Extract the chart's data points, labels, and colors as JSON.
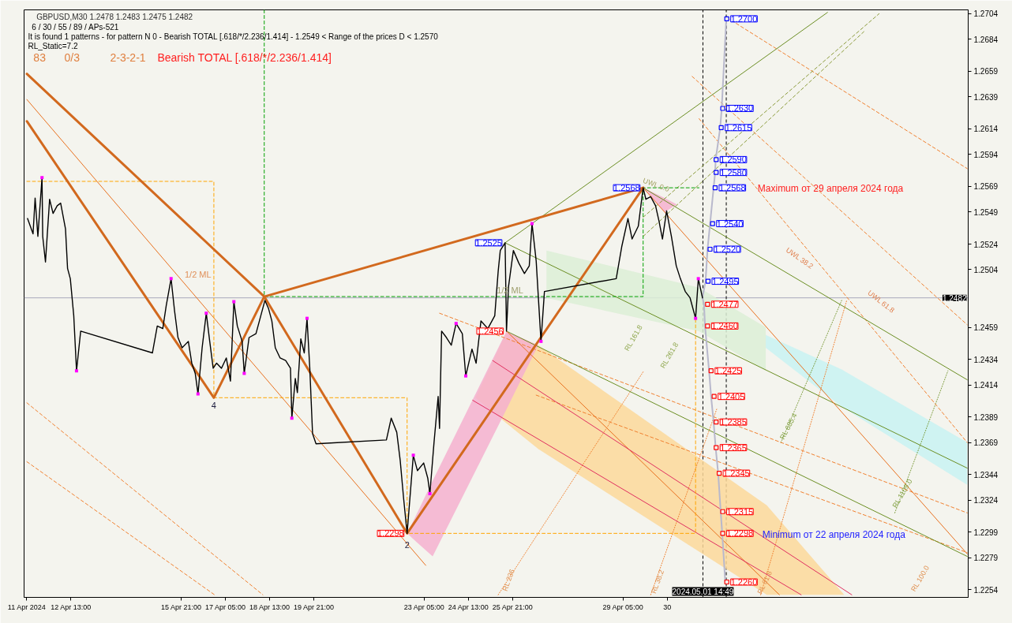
{
  "chart_data": {
    "type": "line",
    "title": "GBPUSD,M30  1.2478 1.2483 1.2475 1.2482",
    "subtitle": "6 / 30 / 55 / 89 / APs-521",
    "annotations": [
      "It is found 1 patterns  -  for pattern N 0 - Bearish TOTAL [.618/*/2.236/1.414] - 1.2549 < Range of the prices D < 1.2570",
      "RL_Static=7.2",
      "83",
      "0/3",
      "2-3-2-1",
      "Bearish TOTAL [.618/*/2.236/1.414]",
      "1/2 ML",
      "1/2 ML",
      "UWL 0.0",
      "UWL 38.2",
      "UWL 61.8",
      "RL 161.8",
      "RL 261.8",
      "RL 685.4",
      "RL 1109.0",
      "RL 236",
      "RL 38.2",
      "RL 61.8",
      "RL 100.0",
      "Maximum от 29 апреля 2024 года",
      "Minimum от 22 апреля 2024 года",
      {
        "text": "4",
        "x": "2024-04-16T20:30",
        "y": 1.2404
      },
      {
        "text": "2",
        "x": "2024-04-22T16:30",
        "y": 1.2298
      },
      {
        "text": "1.2568",
        "x": "2024-04-29T19:30",
        "y": 1.2568
      },
      {
        "text": "1.2525",
        "x": "2024-04-25T15:30",
        "y": 1.2525
      },
      {
        "text": "1.2456",
        "x": "2024-04-25T16:30",
        "y": 1.2456
      },
      {
        "text": "1.2298",
        "x": "2024-04-22T16:30",
        "y": 1.2298
      }
    ],
    "xlim": [
      "2024-04-11T03:00",
      "2024-05-09T15:00"
    ],
    "ylim": [
      1.2248,
      1.2707
    ],
    "xticks": [
      {
        "value": "2024-04-11T05:00",
        "label": "11 Apr 2024"
      },
      {
        "value": "2024-04-12T13:00",
        "label": "12 Apr 13:00"
      },
      {
        "value": "2024-04-15T21:00",
        "label": "15 Apr 21:00"
      },
      {
        "value": "2024-04-17T05:00",
        "label": "17 Apr 05:00"
      },
      {
        "value": "2024-04-18T13:00",
        "label": "18 Apr 13:00"
      },
      {
        "value": "2024-04-19T21:00",
        "label": "19 Apr 21:00"
      },
      {
        "value": "2024-04-23T05:00",
        "label": "23 Apr 05:00"
      },
      {
        "value": "2024-04-24T13:00",
        "label": "24 Apr 13:00"
      },
      {
        "value": "2024-04-25T21:00",
        "label": "25 Apr 21:00"
      },
      {
        "value": "2024-04-29T05:00",
        "label": "29 Apr 05:00"
      },
      {
        "value": "2024-04-30T13:00",
        "label": "30"
      }
    ],
    "yticks": [
      1.2254,
      1.2279,
      1.2299,
      1.2324,
      1.2344,
      1.2369,
      1.2389,
      1.2414,
      1.2434,
      1.2459,
      1.2504,
      1.2524,
      1.2549,
      1.2569,
      1.2594,
      1.2614,
      1.2639,
      1.2659,
      1.2684,
      1.2704
    ],
    "ref_lines": [
      {
        "axis": "y",
        "value": 1.2482,
        "label": "1.2482",
        "color": "#a8a8bc",
        "line_style": "solid"
      },
      {
        "axis": "x",
        "value": "2024-05-01T14:49",
        "label": "2024.05.01 14:49",
        "color": "#000000",
        "line_style": "dashed"
      },
      {
        "axis": "x",
        "value": "2024-05-02T07:44",
        "color": "#000000",
        "line_style": "dashed"
      }
    ],
    "series": [
      {
        "x": [
          "2024-04-26T21:30",
          "2024-05-01T12:00",
          "2024-05-03T12:20"
        ],
        "values": [
          null,
          null,
          null
        ],
        "lower": [
          1.2482,
          1.2456,
          1.2425
        ],
        "upper": [
          1.2519,
          1.249,
          1.2459
        ],
        "color": "#dcefd6"
      },
      {
        "x": [
          "2024-05-03T12:20",
          "2024-05-05T19:20",
          "2024-05-09T14:16"
        ],
        "values": [
          null,
          null,
          null
        ],
        "lower": [
          1.2443,
          1.2397,
          1.2336
        ],
        "upper": [
          1.2453,
          1.2426,
          1.2369
        ],
        "color": "#c8f2f2"
      },
      {
        "x": [
          "2024-04-24T18:00",
          "2024-04-25T16:30",
          "2024-04-26T15:30",
          "2024-05-03T13:04",
          "2024-05-05T21:10"
        ],
        "values": [
          null,
          null,
          null,
          null,
          null
        ],
        "lower": [
          1.2404,
          1.2384,
          1.2364,
          1.225,
          1.225
        ],
        "upper": [
          1.2404,
          1.2455,
          1.2445,
          1.232,
          1.225
        ],
        "color": "#fcd89a"
      },
      {
        "x": [
          "2024-04-22T16:30",
          "2024-04-22T22:30",
          "2024-04-23T11:00",
          "2024-04-25T16:30",
          "2024-04-26T15:30"
        ],
        "values": [
          null,
          null,
          null,
          null,
          null
        ],
        "lower": [
          1.2298,
          1.2292,
          1.228,
          1.2395,
          1.2445
        ],
        "upper": [
          1.2298,
          1.2311,
          1.2339,
          1.2456,
          1.2445
        ],
        "color": "#f4b0cf"
      },
      {
        "x": [
          "2024-04-29T19:30",
          "2024-04-30T11:00",
          "2024-04-30T20:00"
        ],
        "values": [
          null,
          null,
          null
        ],
        "lower": [
          1.2568,
          1.2549,
          1.2555
        ],
        "upper": [
          1.2568,
          1.256,
          1.2555
        ],
        "color": "#f4b0cf"
      },
      {
        "x": [
          "2024-04-25T10:30",
          "2024-04-29T20:00"
        ],
        "values": [
          1.225,
          1.2425
        ],
        "color": "#f08030",
        "line_style": "dotted"
      },
      {
        "x": [
          "2024-04-30T01:00",
          "2024-05-02T00:47"
        ],
        "values": [
          1.225,
          1.2395
        ],
        "color": "#f08030",
        "line_style": "dotted"
      },
      {
        "x": [
          "2024-05-03T08:40",
          "2024-05-05T23:00"
        ],
        "values": [
          1.225,
          1.248
        ],
        "color": "#f08030",
        "line_style": "dotted"
      },
      {
        "x": [
          "2024-05-07T09:50",
          "2024-05-09T00:20"
        ],
        "values": [
          1.2314,
          1.2425
        ],
        "color": "#7a9a3a",
        "line_style": "dotted"
      },
      {
        "x": [
          "2024-05-03T23:20",
          "2024-05-05T19:20"
        ],
        "values": [
          1.2369,
          1.248
        ],
        "color": "#7a9a3a",
        "line_style": "dotted"
      },
      {
        "x": [
          "2024-05-02T08:06",
          "2024-05-09T14:16"
        ],
        "values": [
          1.2701,
          1.2583
        ],
        "color": "#f08030",
        "line_style": "dashed"
      },
      {
        "x": [
          "2024-05-01T07:00",
          "2024-05-09T14:16"
        ],
        "values": [
          1.2655,
          1.2461
        ],
        "color": "#f08030",
        "line_style": "dashed"
      },
      {
        "x": [
          "2024-05-01T12:00",
          "2024-05-09T14:16"
        ],
        "values": [
          1.2622,
          1.2369
        ],
        "color": "#f08030",
        "line_style": "dashed"
      },
      {
        "x": [
          "2024-04-11T05:00",
          "2024-04-18T08:00"
        ],
        "values": [
          1.24,
          1.225
        ],
        "color": "#f08030",
        "line_style": "dashed"
      },
      {
        "x": [
          "2024-04-11T05:00",
          "2024-04-16T21:00"
        ],
        "values": [
          1.2354,
          1.225
        ],
        "color": "#f08030",
        "line_style": "dashed"
      },
      {
        "x": [
          "2024-04-23T16:00",
          "2024-05-09T14:16"
        ],
        "values": [
          1.247,
          1.2314
        ],
        "color": "#f08030",
        "line_style": "dashed"
      },
      {
        "x": [
          "2024-04-26T14:00",
          "2024-05-09T14:16"
        ],
        "values": [
          1.2406,
          1.2283
        ],
        "color": "#f08030",
        "line_style": "dashed"
      },
      {
        "x": [
          "2024-04-29T19:30",
          "2024-05-06T22:28"
        ],
        "values": [
          1.2545,
          1.2704
        ],
        "color": "#8a9a3a",
        "line_style": "dashed"
      },
      {
        "x": [
          "2024-04-29T19:30",
          "2024-05-06T11:28"
        ],
        "values": [
          1.253,
          1.269
        ],
        "color": "#8a9a3a",
        "line_style": "dashed"
      },
      {
        "x": [
          "2024-04-25T15:30",
          "2024-05-05T09:04"
        ],
        "values": [
          1.2525,
          1.2705
        ],
        "color": "#6b8e23",
        "line_style": "solid"
      },
      {
        "x": [
          "2024-04-29T19:30",
          "2024-05-09T14:16"
        ],
        "values": [
          1.2568,
          1.2418
        ],
        "color": "#6b8e23",
        "line_style": "solid"
      },
      {
        "x": [
          "2024-04-25T15:30",
          "2024-05-09T14:16"
        ],
        "values": [
          1.2525,
          1.2349
        ],
        "color": "#6b8e23",
        "line_style": "solid"
      },
      {
        "x": [
          "2024-04-25T16:30",
          "2024-05-09T14:16"
        ],
        "values": [
          1.2456,
          1.228
        ],
        "color": "#6b8e23",
        "line_style": "solid"
      },
      {
        "x": [
          "2024-04-11T05:00",
          "2024-04-23T06:00"
        ],
        "values": [
          1.2637,
          1.2273
        ],
        "color": "#e8701e",
        "line_style": "solid"
      },
      {
        "x": [
          "2024-04-29T19:30",
          "2024-05-09T14:16"
        ],
        "values": [
          1.2568,
          1.2282
        ],
        "color": "#e8701e",
        "line_style": "solid"
      },
      {
        "x": [
          "2024-04-25T16:30",
          "2024-05-03T22:14"
        ],
        "values": [
          1.2456,
          1.225
        ],
        "color": "#e8701e",
        "line_style": "solid"
      },
      {
        "x": [
          "2024-04-25T06:30",
          "2024-05-06T02:40"
        ],
        "values": [
          1.2433,
          1.225
        ],
        "color": "#e03060",
        "line_style": "solid"
      },
      {
        "x": [
          "2024-04-24T16:00",
          "2024-05-04T14:00"
        ],
        "values": [
          1.2402,
          1.225
        ],
        "color": "#e03060",
        "line_style": "solid"
      },
      {
        "x": [
          "2024-04-18T09:00",
          "2024-04-18T09:00",
          "2024-04-29T19:30",
          "2024-04-29T19:30",
          "2024-05-01T12:00"
        ],
        "values": [
          1.2707,
          1.2483,
          1.2483,
          1.2568,
          1.2568
        ],
        "color": "#00a000",
        "line_style": "dashed"
      },
      {
        "x": [
          "2024-04-11T05:00",
          "2024-04-16T20:30",
          "2024-04-16T20:30",
          "2024-04-22T16:30",
          "2024-04-22T16:30",
          "2024-05-01T09:30",
          "2024-05-01T09:30"
        ],
        "values": [
          1.2573,
          1.2573,
          1.2404,
          1.2404,
          1.2298,
          1.2298,
          1.2466
        ],
        "color": "#ffa500",
        "line_style": "dashed"
      },
      {
        "x": [
          "2024-05-02T07:44",
          "2024-05-02T04:26",
          "2024-05-02T03:20",
          "2024-05-02T00:02",
          "2024-05-01T23:40",
          "2024-05-01T22:34",
          "2024-05-01T20:00",
          "2024-05-01T18:10",
          "2024-05-01T16:42",
          "2024-05-01T14:30",
          "2024-05-01T15:36",
          "2024-05-01T16:20",
          "2024-05-01T19:16",
          "2024-05-01T20:44",
          "2024-05-01T22:34",
          "2024-05-02T00:02",
          "2024-05-02T01:52",
          "2024-05-02T03:42",
          "2024-05-02T04:48",
          "2024-05-02T07:00"
        ],
        "values": [
          1.27,
          1.263,
          1.2615,
          1.259,
          1.258,
          1.2568,
          1.254,
          1.252,
          1.2495,
          1.2482,
          1.2477,
          1.246,
          1.2425,
          1.2405,
          1.2385,
          1.2365,
          1.2345,
          1.2315,
          1.2298,
          1.226
        ],
        "color": "#b8b8cc",
        "line_style": "solid"
      },
      {
        "x": [
          "2024-04-11T05:00",
          "2024-04-16T20:30",
          "2024-04-18T09:00",
          "2024-04-22T16:30",
          "2024-04-29T19:30"
        ],
        "values": [
          1.262,
          1.2404,
          1.2483,
          1.2298,
          1.2568
        ],
        "color": "#d2691e",
        "line_style": "solid"
      },
      {
        "x": [
          "2024-04-11T05:00",
          "2024-04-18T09:00",
          "2024-04-29T19:30"
        ],
        "values": [
          1.2657,
          1.2483,
          1.2568
        ],
        "color": "#d2691e",
        "line_style": "solid"
      },
      {
        "color": "#000000",
        "line_style": "solid",
        "x": [
          "2024-04-11T05:30",
          "2024-04-11T09:30",
          "2024-04-11T11:00",
          "2024-04-11T13:00",
          "2024-04-11T16:00",
          "2024-04-11T16:30",
          "2024-04-11T18:30",
          "2024-04-11T21:30",
          "2024-04-12T00:00",
          "2024-04-12T03:00",
          "2024-04-12T05:30",
          "2024-04-12T09:00",
          "2024-04-12T10:30",
          "2024-04-12T12:30",
          "2024-04-12T15:00",
          "2024-04-12T17:00",
          "2024-04-12T20:00",
          "2024-04-15T00:00",
          "2024-04-15T03:30",
          "2024-04-15T07:30",
          "2024-04-15T10:00",
          "2024-04-15T13:30",
          "2024-04-15T16:00",
          "2024-04-15T18:30",
          "2024-04-15T21:30",
          "2024-04-16T02:00",
          "2024-04-16T04:30",
          "2024-04-16T07:00",
          "2024-04-16T09:00",
          "2024-04-16T12:00",
          "2024-04-16T15:00",
          "2024-04-16T17:30",
          "2024-04-16T20:00",
          "2024-04-16T22:30",
          "2024-04-17T02:00",
          "2024-04-17T05:30",
          "2024-04-17T08:30",
          "2024-04-17T11:00",
          "2024-04-17T13:30",
          "2024-04-17T17:00",
          "2024-04-17T18:30",
          "2024-04-17T22:00",
          "2024-04-18T03:00",
          "2024-04-18T06:30",
          "2024-04-18T09:30",
          "2024-04-18T12:00",
          "2024-04-18T14:30",
          "2024-04-18T17:00",
          "2024-04-18T20:30",
          "2024-04-19T00:30",
          "2024-04-19T04:00",
          "2024-04-19T05:00",
          "2024-04-19T07:30",
          "2024-04-19T09:00",
          "2024-04-19T11:30",
          "2024-04-19T14:00",
          "2024-04-19T16:00",
          "2024-04-19T18:00",
          "2024-04-19T20:00",
          "2024-04-19T22:30",
          "2024-04-22T01:30",
          "2024-04-22T05:00",
          "2024-04-22T09:00",
          "2024-04-22T11:30",
          "2024-04-22T14:00",
          "2024-04-22T16:30",
          "2024-04-22T18:30",
          "2024-04-22T21:00",
          "2024-04-23T00:00",
          "2024-04-23T04:30",
          "2024-04-23T07:30",
          "2024-04-23T09:00",
          "2024-04-23T12:00",
          "2024-04-23T15:00",
          "2024-04-23T16:00",
          "2024-04-23T17:30",
          "2024-04-23T21:00",
          "2024-04-24T00:30",
          "2024-04-24T04:00",
          "2024-04-24T08:30",
          "2024-04-24T11:00",
          "2024-04-24T15:30",
          "2024-04-24T18:30",
          "2024-04-24T22:00",
          "2024-04-25T03:00",
          "2024-04-25T08:00",
          "2024-04-25T10:30",
          "2024-04-25T12:00",
          "2024-04-25T15:30",
          "2024-04-25T16:30",
          "2024-04-25T18:00",
          "2024-04-25T21:30",
          "2024-04-26T01:30",
          "2024-04-26T05:30",
          "2024-04-26T09:00",
          "2024-04-26T11:00",
          "2024-04-26T14:00",
          "2024-04-26T17:30",
          "2024-04-26T20:00",
          "2024-04-29T00:00",
          "2024-04-29T04:00",
          "2024-04-29T08:30",
          "2024-04-29T11:30",
          "2024-04-29T16:00",
          "2024-04-29T19:30",
          "2024-04-29T21:30",
          "2024-04-30T01:00",
          "2024-04-30T04:30",
          "2024-04-30T07:00",
          "2024-04-30T09:30",
          "2024-04-30T12:30",
          "2024-04-30T16:00",
          "2024-04-30T19:30",
          "2024-04-30T22:30",
          "2024-05-01T02:00",
          "2024-05-01T05:30",
          "2024-05-01T09:30",
          "2024-05-01T11:30",
          "2024-05-01T14:30"
        ],
        "values": [
          1.2544,
          1.2532,
          1.256,
          1.253,
          1.2576,
          1.253,
          1.251,
          1.2559,
          1.2548,
          1.2554,
          1.2556,
          1.2536,
          1.2505,
          1.2497,
          1.2468,
          1.2425,
          1.2456,
          1.2439,
          1.246,
          1.2458,
          1.2476,
          1.2497,
          1.2472,
          1.2451,
          1.2443,
          1.2448,
          1.2431,
          1.2423,
          1.2407,
          1.2443,
          1.247,
          1.2448,
          1.2427,
          1.2431,
          1.2427,
          1.2435,
          1.2417,
          1.2479,
          1.246,
          1.2448,
          1.2423,
          1.2451,
          1.2454,
          1.2468,
          1.248,
          1.2474,
          1.2464,
          1.2443,
          1.2435,
          1.2433,
          1.2427,
          1.2388,
          1.2419,
          1.2408,
          1.245,
          1.2439,
          1.2466,
          1.2427,
          1.2376,
          1.2368,
          1.2371,
          1.2388,
          1.2377,
          1.2355,
          1.2325,
          1.2298,
          1.2325,
          1.2359,
          1.2347,
          1.2353,
          1.2341,
          1.2329,
          1.2369,
          1.2405,
          1.238,
          1.2456,
          1.2451,
          1.2445,
          1.2462,
          1.2454,
          1.2421,
          1.2442,
          1.2431,
          1.2464,
          1.2458,
          1.2468,
          1.2503,
          1.2519,
          1.2525,
          1.2456,
          1.2491,
          1.2519,
          1.2509,
          1.2501,
          1.2507,
          1.254,
          1.2511,
          1.2448,
          1.2487,
          1.2497,
          1.2522,
          1.2544,
          1.2528,
          1.2538,
          1.2568,
          1.2559,
          1.2561,
          1.2554,
          1.2542,
          1.2528,
          1.255,
          1.253,
          1.2507,
          1.2497,
          1.2487,
          1.2482,
          1.2466,
          1.2497,
          1.2482
        ]
      },
      {
        "type": "scatter",
        "marker": "square",
        "color": "#ff00ff",
        "x": [
          "2024-04-11T16:00",
          "2024-04-12T17:00",
          "2024-04-15T13:30",
          "2024-04-16T09:00",
          "2024-04-16T15:00",
          "2024-04-17T11:00",
          "2024-04-17T18:30",
          "2024-04-19T05:00",
          "2024-04-19T16:00",
          "2024-04-22T21:00",
          "2024-04-23T09:00",
          "2024-04-24T04:00",
          "2024-04-24T11:00",
          "2024-04-26T11:00",
          "2024-04-26T17:30",
          "2024-05-01T09:30",
          "2024-05-01T11:30"
        ],
        "values": [
          1.2576,
          1.2425,
          1.2497,
          1.2407,
          1.247,
          1.2479,
          1.2423,
          1.2388,
          1.2466,
          1.2359,
          1.2329,
          1.2462,
          1.2421,
          1.254,
          1.2448,
          1.2466,
          1.2497
        ]
      },
      {
        "type": "scatter",
        "marker": "square",
        "color": "#0000ff",
        "x": [
          "2024-05-02T08:06",
          "2024-05-02T05:10",
          "2024-05-02T04:04",
          "2024-05-02T00:24",
          "2024-05-02T00:24",
          "2024-05-01T23:40",
          "2024-05-01T21:50",
          "2024-05-01T20:00",
          "2024-05-01T18:32"
        ],
        "values": [
          1.27,
          1.263,
          1.2615,
          1.259,
          1.258,
          1.2568,
          1.254,
          1.252,
          1.2495
        ],
        "value_labels": [
          "1.2700",
          "1.2630",
          "1.2615",
          "1.2590",
          "1.2580",
          "1.2568",
          "1.2540",
          "1.2520",
          "1.2495"
        ]
      },
      {
        "type": "scatter",
        "marker": "square",
        "color": "#ff0000",
        "x": [
          "2024-05-01T18:10",
          "2024-05-01T18:10",
          "2024-05-01T20:44",
          "2024-05-01T22:56",
          "2024-05-02T00:24",
          "2024-05-02T00:24",
          "2024-05-02T02:36",
          "2024-05-02T05:10",
          "2024-05-02T05:10",
          "2024-05-02T08:06"
        ],
        "values": [
          1.2477,
          1.246,
          1.2425,
          1.2405,
          1.2385,
          1.2365,
          1.2345,
          1.2315,
          1.2298,
          1.226
        ],
        "value_labels": [
          "1.2477",
          "1.2460",
          "1.2425",
          "1.2405",
          "1.2385",
          "1.2365",
          "1.2345",
          "1.2315",
          "1.2298",
          "1.2260"
        ]
      }
    ]
  }
}
